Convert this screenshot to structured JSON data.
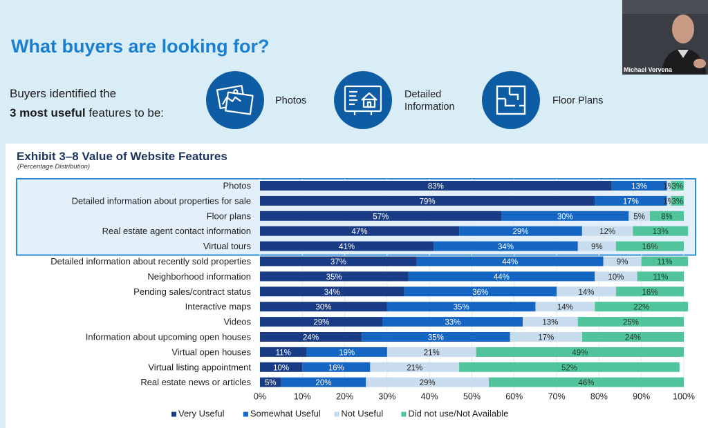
{
  "slide": {
    "title": "What buyers are looking for?",
    "intro_line1": "Buyers identified the",
    "intro_bold": "3 most useful",
    "intro_rest": " features to be:",
    "features": [
      {
        "label": "Photos",
        "icon": "photos-icon"
      },
      {
        "label": "Detailed Information",
        "icon": "house-info-icon"
      },
      {
        "label": "Floor Plans",
        "icon": "floor-plan-icon"
      }
    ]
  },
  "webcam": {
    "name": "Michael Vervena"
  },
  "colors": {
    "very_useful": "#1a3c85",
    "somewhat_useful": "#1466c2",
    "not_useful": "#c8dcee",
    "did_not_use": "#52c49b",
    "highlight_border": "#1a7fd1",
    "highlight_fill": "#e3eff9"
  },
  "chart_data": {
    "type": "bar",
    "orientation": "horizontal",
    "stacked": true,
    "title": "Exhibit 3–8 Value of Website Features",
    "subtitle": "(Percentage Distribution)",
    "categories": [
      "Photos",
      "Detailed information about properties for sale",
      "Floor plans",
      "Real estate agent contact information",
      "Virtual tours",
      "Detailed information about recently sold properties",
      "Neighborhood information",
      "Pending sales/contract status",
      "Interactive maps",
      "Videos",
      "Information about upcoming open houses",
      "Virtual open houses",
      "Virtual listing appointment",
      "Real estate news or articles"
    ],
    "series": [
      {
        "name": "Very Useful",
        "values": [
          83,
          79,
          57,
          47,
          41,
          37,
          35,
          34,
          30,
          29,
          24,
          11,
          10,
          5
        ]
      },
      {
        "name": "Somewhat Useful",
        "values": [
          13,
          17,
          30,
          29,
          34,
          44,
          44,
          36,
          35,
          33,
          35,
          19,
          16,
          20
        ]
      },
      {
        "name": "Not Useful",
        "values": [
          1,
          1,
          5,
          12,
          9,
          9,
          10,
          14,
          14,
          13,
          17,
          21,
          21,
          29
        ]
      },
      {
        "name": "Did not use/Not Available",
        "values": [
          3,
          3,
          8,
          13,
          16,
          11,
          11,
          16,
          22,
          25,
          24,
          49,
          52,
          46
        ]
      }
    ],
    "value_labels": [
      [
        "83%",
        "13%",
        "1%",
        "3%"
      ],
      [
        "79%",
        "17%",
        "1%",
        "3%"
      ],
      [
        "57%",
        "30%",
        "5%",
        "8%"
      ],
      [
        "47%",
        "29%",
        "12%",
        "13%"
      ],
      [
        "41%",
        "34%",
        "9%",
        "16%"
      ],
      [
        "37%",
        "44%",
        "9%",
        "11%"
      ],
      [
        "35%",
        "44%",
        "10%",
        "11%"
      ],
      [
        "34%",
        "36%",
        "14%",
        "16%"
      ],
      [
        "30%",
        "35%",
        "14%",
        "22%"
      ],
      [
        "29%",
        "33%",
        "13%",
        "25%"
      ],
      [
        "24%",
        "35%",
        "17%",
        "24%"
      ],
      [
        "11%",
        "19%",
        "21%",
        "49%"
      ],
      [
        "10%",
        "16%",
        "21%",
        "52%"
      ],
      [
        "5%",
        "20%",
        "29%",
        "46%"
      ]
    ],
    "highlighted_rows": 5,
    "xlim": [
      0,
      100
    ],
    "xticks": [
      "0%",
      "10%",
      "20%",
      "30%",
      "40%",
      "50%",
      "60%",
      "70%",
      "80%",
      "90%",
      "100%"
    ],
    "legend_position": "bottom"
  }
}
